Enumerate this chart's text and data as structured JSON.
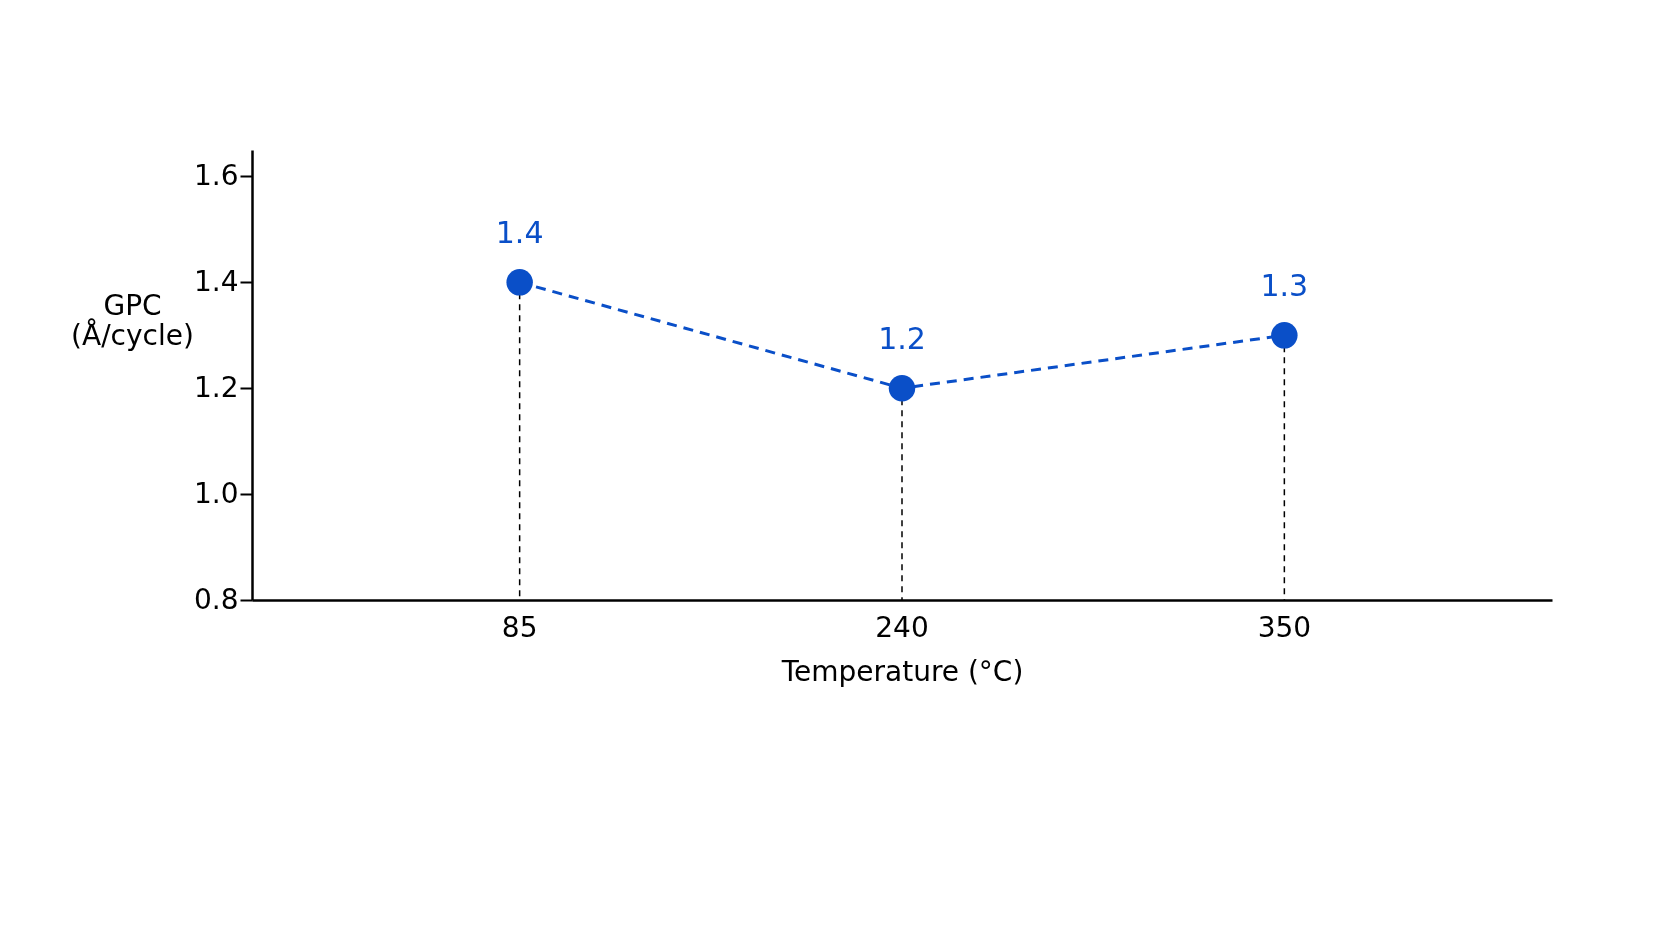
{
  "chart_data": {
    "type": "line",
    "xlabel": "Temperature (°C)",
    "ylabel": "GPC (Å/cycle)",
    "categories": [
      "85",
      "240",
      "350"
    ],
    "series": [
      {
        "color": "#0a4fc8",
        "values": [
          1.4,
          1.2,
          1.3
        ]
      }
    ],
    "ylim": [
      0.8,
      1.65
    ],
    "yticks": [
      0.8,
      {
        "value": 1,
        "label": "1.0"
      },
      1.2,
      1.4,
      1.6
    ],
    "data_labels": true,
    "marker": "circle",
    "line_style": "dashed",
    "grid": "x",
    "legend": false
  }
}
